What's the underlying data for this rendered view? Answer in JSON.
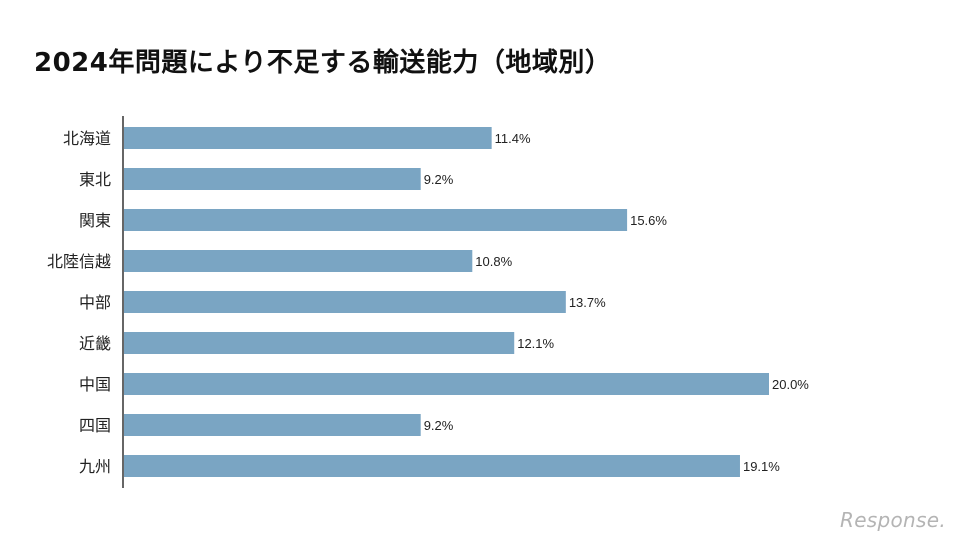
{
  "chart_data": {
    "type": "bar",
    "orientation": "horizontal",
    "title": "2024年問題により不足する輸送能力（地域別）",
    "categories": [
      "北海道",
      "東北",
      "関東",
      "北陸信越",
      "中部",
      "近畿",
      "中国",
      "四国",
      "九州"
    ],
    "values": [
      11.4,
      9.2,
      15.6,
      10.8,
      13.7,
      12.1,
      20.0,
      9.2,
      19.1
    ],
    "value_labels": [
      "11.4%",
      "9.2%",
      "15.6%",
      "10.8%",
      "13.7%",
      "12.1%",
      "20.0%",
      "9.2%",
      "19.1%"
    ],
    "xlim": [
      0,
      20.0
    ],
    "grid": false,
    "legend": "none",
    "bar_color": "#7aa5c3"
  },
  "watermark": "Response."
}
